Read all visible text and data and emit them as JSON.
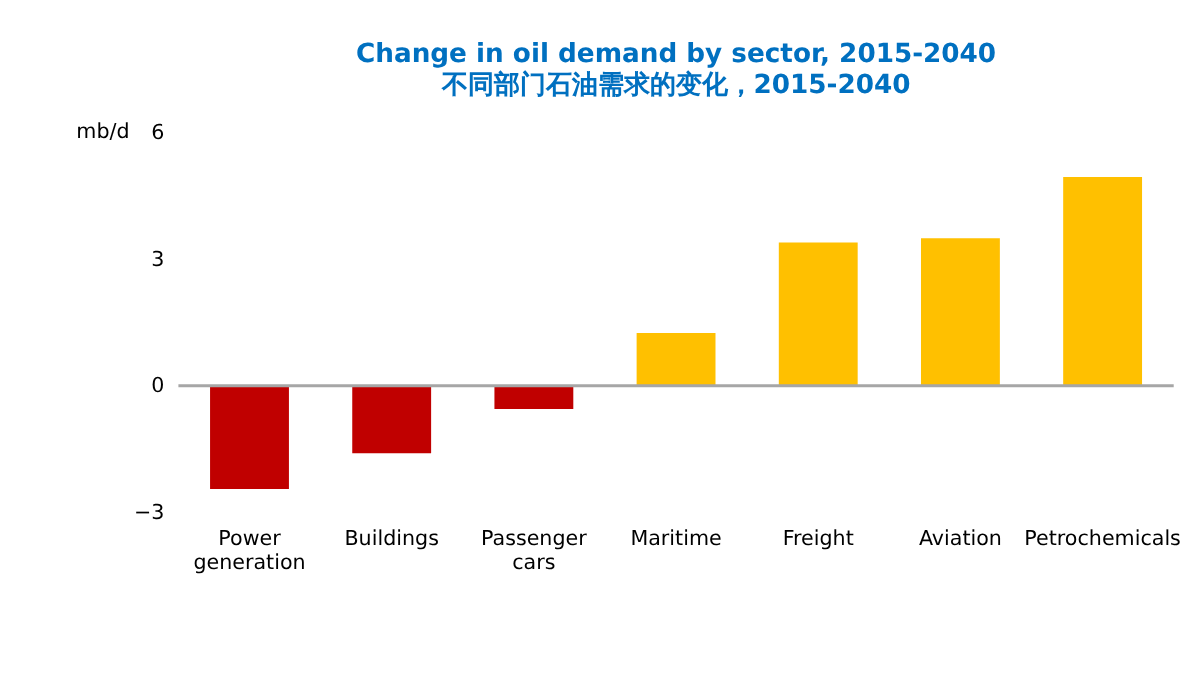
{
  "chart_data": {
    "type": "bar",
    "title": "Change in oil demand by sector, 2015-2040",
    "subtitle": "不同部门石油需求的变化，2015-2040",
    "ylabel": "mb/d",
    "categories": [
      "Power generation",
      "Buildings",
      "Passenger cars",
      "Maritime",
      "Freight",
      "Aviation",
      "Petrochemicals"
    ],
    "values": [
      -2.45,
      -1.6,
      -0.55,
      1.25,
      3.4,
      3.5,
      4.95
    ],
    "colors": [
      "#c00000",
      "#c00000",
      "#c00000",
      "#ffc000",
      "#ffc000",
      "#ffc000",
      "#ffc000"
    ],
    "ylim": [
      -3,
      6
    ],
    "yticks": [
      -3,
      0,
      3,
      6
    ],
    "ref_lines": [
      {
        "axis": "y",
        "value": 0,
        "color": "#a6a6a6"
      }
    ]
  }
}
